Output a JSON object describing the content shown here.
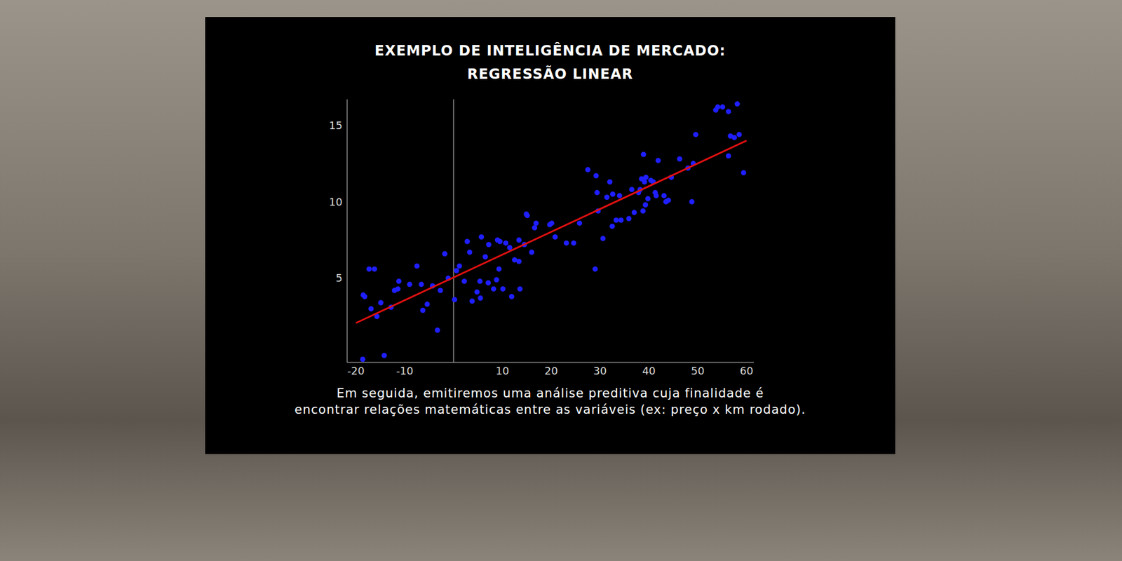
{
  "title": [
    "EXEMPLO DE INTELIGÊNCIA DE MERCADO:",
    "REGRESSÃO LINEAR"
  ],
  "caption": [
    "Em seguida, emitiremos uma análise preditiva cuja finalidade é",
    "encontrar relações matemáticas entre as variáveis (ex: preço x km rodado)."
  ],
  "chart_data": {
    "type": "scatter",
    "xlim": [
      -21.8,
      61.5
    ],
    "ylim": [
      -0.5,
      16.7
    ],
    "xticks": [
      -20,
      -10,
      10,
      20,
      30,
      40,
      50,
      60
    ],
    "yticks": [
      5,
      10,
      15
    ],
    "grid": false,
    "series": [
      {
        "type": "scatter",
        "color": "#1f1fff",
        "marker": "circle",
        "x": [
          -18.5,
          -18.2,
          -17.3,
          -16.2,
          -16.9,
          -15.7,
          -14.9,
          -18.6,
          -14.2,
          -12.8,
          -12.1,
          -11.4,
          -11.2,
          -9.0,
          -7.5,
          -6.6,
          -6.3,
          -5.4,
          -4.3,
          -3.3,
          -2.7,
          -1.8,
          -1.1,
          0.2,
          0.6,
          1.2,
          2.2,
          2.8,
          3.3,
          3.8,
          4.8,
          5.5,
          5.4,
          5.7,
          6.5,
          7.2,
          7.1,
          8.2,
          8.8,
          9.0,
          9.5,
          9.3,
          10.1,
          10.7,
          11.5,
          11.9,
          12.5,
          13.4,
          13.4,
          13.6,
          14.5,
          14.9,
          15.1,
          16.0,
          16.6,
          16.9,
          19.7,
          20.1,
          20.8,
          23.1,
          24.6,
          25.8,
          27.5,
          29.2,
          29.4,
          29.0,
          29.6,
          30.6,
          31.4,
          32.0,
          32.5,
          32.6,
          33.3,
          34.0,
          34.3,
          35.9,
          36.5,
          37.0,
          37.9,
          38.2,
          38.5,
          38.8,
          38.9,
          39.1,
          39.3,
          39.4,
          39.8,
          40.4,
          40.9,
          41.3,
          41.5,
          41.9,
          43.1,
          43.5,
          44.0,
          44.6,
          46.3,
          48.0,
          48.8,
          49.1,
          49.6,
          53.7,
          54.1,
          55.1,
          56.3,
          56.3,
          56.7,
          57.5,
          58.1,
          58.5,
          59.4
        ],
        "values": [
          3.9,
          3.8,
          5.6,
          5.6,
          3.0,
          2.5,
          3.4,
          -0.3,
          -0.05,
          3.1,
          4.2,
          4.3,
          4.8,
          4.6,
          5.8,
          4.6,
          2.9,
          3.3,
          4.5,
          1.6,
          4.2,
          6.6,
          5.0,
          3.6,
          5.5,
          5.8,
          4.8,
          7.4,
          6.7,
          3.5,
          4.1,
          3.7,
          4.8,
          7.7,
          6.4,
          7.2,
          4.7,
          4.3,
          4.9,
          7.5,
          7.4,
          5.6,
          4.3,
          7.3,
          7.0,
          3.8,
          6.2,
          7.5,
          6.1,
          4.3,
          7.2,
          9.2,
          9.1,
          6.7,
          8.3,
          8.6,
          8.5,
          8.6,
          7.7,
          7.3,
          7.3,
          8.6,
          12.1,
          11.7,
          10.6,
          5.6,
          9.4,
          7.6,
          10.3,
          11.3,
          8.4,
          10.5,
          8.8,
          10.4,
          8.8,
          8.9,
          10.8,
          9.3,
          10.6,
          10.8,
          11.5,
          9.4,
          13.1,
          11.3,
          9.8,
          11.6,
          10.2,
          11.4,
          11.3,
          10.6,
          10.4,
          12.7,
          10.4,
          10.0,
          10.1,
          11.6,
          12.8,
          12.2,
          10.0,
          12.5,
          14.4,
          16.0,
          16.2,
          16.2,
          15.9,
          13.0,
          14.3,
          14.2,
          16.4,
          14.4,
          11.9
        ]
      },
      {
        "type": "line",
        "color": "#e01010",
        "line_style": "solid",
        "x": [
          -20,
          60
        ],
        "values": [
          2.07,
          14.0
        ]
      }
    ]
  }
}
